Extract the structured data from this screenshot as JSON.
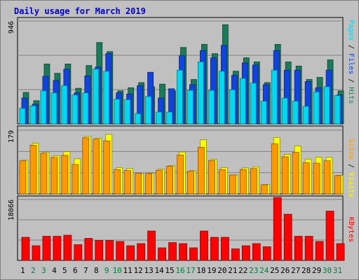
{
  "chart_data": [
    {
      "type": "bar",
      "title": "Daily usage for March 2019",
      "categories": [
        "1",
        "2",
        "3",
        "4",
        "5",
        "6",
        "7",
        "8",
        "9",
        "10",
        "11",
        "12",
        "13",
        "14",
        "15",
        "16",
        "17",
        "18",
        "19",
        "20",
        "21",
        "22",
        "23",
        "24",
        "25",
        "26",
        "27",
        "28",
        "29",
        "30",
        "31"
      ],
      "weekend_categories": [
        "2",
        "3",
        "9",
        "10",
        "16",
        "17",
        "23",
        "24",
        "30",
        "31"
      ],
      "y_tick": "946",
      "ylim": [
        0,
        1030
      ],
      "series_labels": [
        "Pages",
        "Files",
        "Hits"
      ],
      "series": [
        {
          "name": "Hits",
          "color": "#1a7a5a",
          "values": [
            305,
            225,
            580,
            490,
            580,
            345,
            565,
            788,
            700,
            320,
            350,
            400,
            360,
            385,
            320,
            740,
            430,
            770,
            680,
            960,
            510,
            640,
            600,
            400,
            770,
            600,
            560,
            430,
            450,
            620,
            320
          ]
        },
        {
          "name": "Files",
          "color": "#1144dd",
          "values": [
            250,
            190,
            460,
            420,
            530,
            300,
            465,
            550,
            680,
            300,
            290,
            370,
            500,
            250,
            340,
            660,
            380,
            710,
            640,
            760,
            470,
            590,
            570,
            380,
            710,
            520,
            520,
            410,
            350,
            520,
            280
          ]
        },
        {
          "name": "Pages",
          "color": "#00d8f0",
          "values": [
            150,
            175,
            320,
            300,
            370,
            280,
            300,
            530,
            510,
            240,
            235,
            100,
            265,
            115,
            115,
            520,
            325,
            600,
            325,
            510,
            330,
            440,
            395,
            220,
            520,
            250,
            220,
            170,
            310,
            360,
            275
          ]
        }
      ]
    },
    {
      "type": "bar",
      "categories": [
        "1",
        "2",
        "3",
        "4",
        "5",
        "6",
        "7",
        "8",
        "9",
        "10",
        "11",
        "12",
        "13",
        "14",
        "15",
        "16",
        "17",
        "18",
        "19",
        "20",
        "21",
        "22",
        "23",
        "24",
        "25",
        "26",
        "27",
        "28",
        "29",
        "30",
        "31"
      ],
      "y_tick": "179",
      "ylim": [
        0,
        201
      ],
      "series_labels": [
        "Sites",
        "Visits"
      ],
      "series": [
        {
          "name": "Visits",
          "color": "#ffff00",
          "values": [
            100,
            150,
            123,
            113,
            125,
            104,
            170,
            165,
            176,
            78,
            75,
            59,
            61,
            73,
            84,
            124,
            69,
            160,
            102,
            78,
            56,
            77,
            80,
            28,
            167,
            117,
            142,
            103,
            109,
            108,
            55
          ]
        },
        {
          "name": "Sites",
          "color": "#ff9900",
          "values": [
            98,
            144,
            120,
            108,
            114,
            87,
            166,
            162,
            157,
            72,
            69,
            61,
            60,
            70,
            82,
            115,
            67,
            138,
            99,
            72,
            56,
            72,
            75,
            27,
            148,
            110,
            123,
            92,
            91,
            98,
            54
          ]
        }
      ]
    },
    {
      "type": "bar",
      "categories": [
        "1",
        "2",
        "3",
        "4",
        "5",
        "6",
        "7",
        "8",
        "9",
        "10",
        "11",
        "12",
        "13",
        "14",
        "15",
        "16",
        "17",
        "18",
        "19",
        "20",
        "21",
        "22",
        "23",
        "24",
        "25",
        "26",
        "27",
        "28",
        "29",
        "30",
        "31"
      ],
      "y_tick": "18066",
      "ylim": [
        0,
        19650
      ],
      "series_labels": [
        "KBytes"
      ],
      "series": [
        {
          "name": "KBytes",
          "color": "#ff0000",
          "values": [
            7040,
            4480,
            7360,
            7360,
            7680,
            4800,
            6720,
            6080,
            6080,
            5760,
            4480,
            5120,
            8960,
            3840,
            5440,
            5120,
            3840,
            8960,
            7040,
            7040,
            3520,
            4480,
            5120,
            4160,
            19200,
            14080,
            7360,
            7360,
            5760,
            15040,
            5120
          ]
        }
      ]
    }
  ]
}
